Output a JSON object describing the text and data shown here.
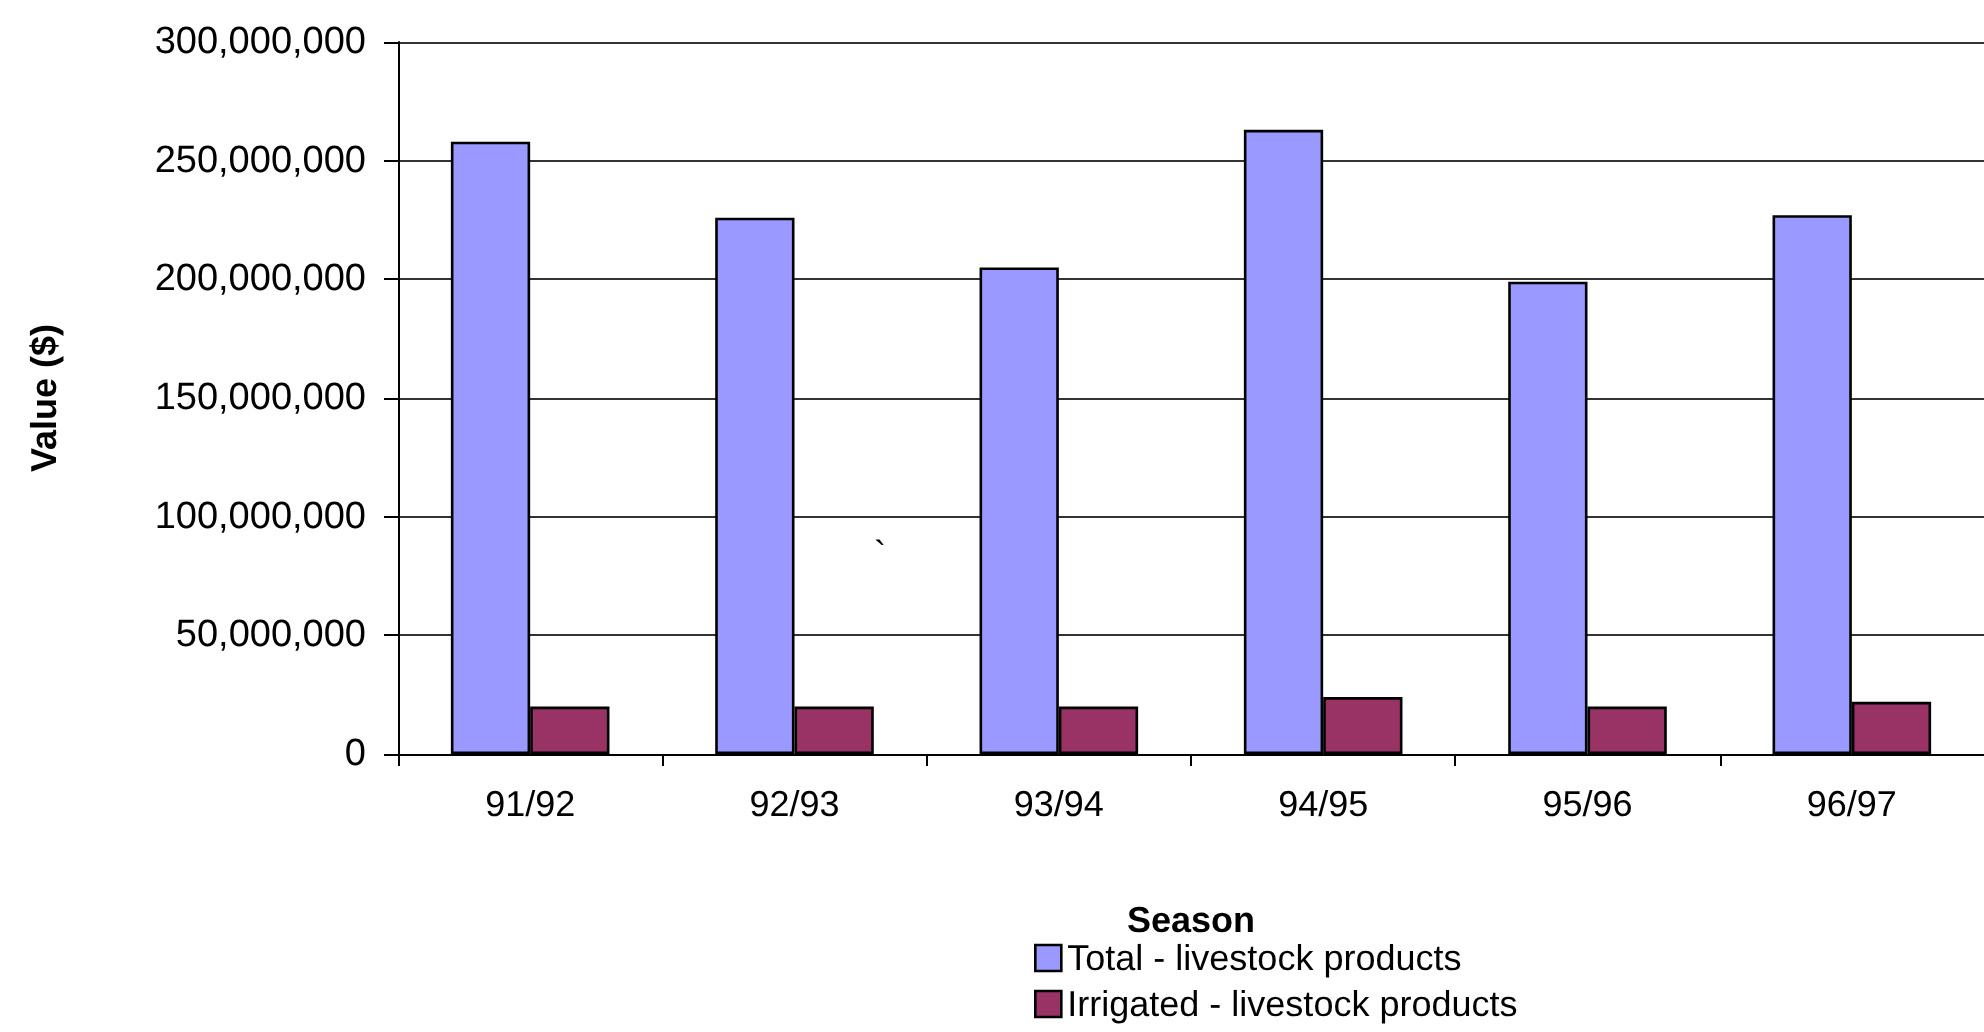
{
  "chart_data": {
    "type": "bar",
    "xlabel": "Season",
    "ylabel": "Value ($)",
    "categories": [
      "91/92",
      "92/93",
      "93/94",
      "94/95",
      "95/96",
      "96/97"
    ],
    "series": [
      {
        "name": "Total - livestock products",
        "color": "#9999ff",
        "values": [
          258000000,
          226000000,
          205000000,
          263000000,
          199000000,
          227000000
        ]
      },
      {
        "name": "Irrigated - livestock products",
        "color": "#993366",
        "values": [
          20000000,
          20000000,
          20000000,
          24000000,
          20000000,
          22000000
        ]
      }
    ],
    "ylim": [
      0,
      300000000
    ],
    "yticks": [
      {
        "value": 0,
        "label": "0"
      },
      {
        "value": 50000000,
        "label": "50,000,000"
      },
      {
        "value": 100000000,
        "label": "100,000,000"
      },
      {
        "value": 150000000,
        "label": "150,000,000"
      },
      {
        "value": 200000000,
        "label": "200,000,000"
      },
      {
        "value": 250000000,
        "label": "250,000,000"
      },
      {
        "value": 300000000,
        "label": "300,000,000"
      }
    ],
    "grid": "y",
    "legend": "bottom",
    "annotations": [
      "`"
    ]
  }
}
